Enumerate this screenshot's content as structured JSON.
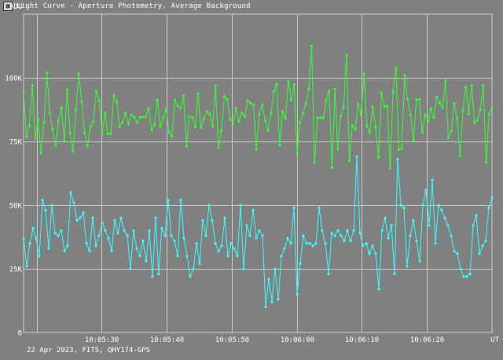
{
  "window": {
    "icon": "graph-icon",
    "title": "Light Curve - Aperture Photometry, Average Background"
  },
  "footer": {
    "caption": "22 Apr 2023, FITS, QHY174-GPS"
  },
  "chart_data": {
    "type": "line",
    "title": "",
    "ylabel": "ADU",
    "xlabel": "UT",
    "ylim": [
      0,
      125000
    ],
    "xlim": [
      0,
      72
    ],
    "grid": true,
    "y_ticks": [
      {
        "value": 0,
        "label": "0"
      },
      {
        "value": 25000,
        "label": "25K"
      },
      {
        "value": 50000,
        "label": "50K"
      },
      {
        "value": 75000,
        "label": "75K"
      },
      {
        "value": 100000,
        "label": "100K"
      }
    ],
    "x_ticks": [
      {
        "value": 2,
        "label": ""
      },
      {
        "value": 12,
        "label": "10:05:30"
      },
      {
        "value": 22,
        "label": "10:05:40"
      },
      {
        "value": 32,
        "label": "10:05:50"
      },
      {
        "value": 42,
        "label": "10:06:00"
      },
      {
        "value": 52,
        "label": "10:06:10"
      },
      {
        "value": 62,
        "label": "10:06:20"
      }
    ],
    "series": [
      {
        "color": "#33ff33",
        "values": [
          93900,
          76900,
          81300,
          97000,
          76200,
          83800,
          70500,
          82500,
          102000,
          86100,
          79800,
          73400,
          82900,
          88300,
          75200,
          95300,
          78300,
          71100,
          87300,
          101600,
          90600,
          78400,
          73200,
          80800,
          82700,
          94800,
          91100,
          78000,
          86300,
          78000,
          78100,
          93200,
          90700,
          80800,
          82500,
          86100,
          81800,
          85500,
          84600,
          82500,
          84500,
          84600,
          84700,
          88000,
          79500,
          81500,
          91300,
          80800,
          84500,
          87900,
          78600,
          77100,
          91300,
          88900,
          88200,
          93000,
          73100,
          84800,
          84500,
          80700,
          93700,
          80500,
          84100,
          86800,
          85800,
          81000,
          96900,
          72500,
          79200,
          92800,
          91500,
          83900,
          82000,
          88100,
          82800,
          86100,
          84900,
          91000,
          90100,
          89400,
          72000,
          85700,
          89600,
          83400,
          79200,
          86100,
          94600,
          97600,
          73600,
          86700,
          84100,
          98600,
          91300,
          97300,
          70200,
          82600,
          86000,
          89800,
          95800,
          112500,
          66700,
          84200,
          84400,
          84100,
          91200,
          94800,
          64700,
          95600,
          72000,
          85000,
          88400,
          109000,
          67400,
          81200,
          80000,
          89800,
          85300,
          101600,
          81100,
          78500,
          88600,
          80600,
          68700,
          94100,
          88800,
          88800,
          64500,
          94400,
          103900,
          71800,
          72300,
          100900,
          91600,
          85400,
          75500,
          91400,
          91600,
          78600,
          85500,
          83000,
          87900,
          84500,
          92500,
          90100,
          88300,
          99000,
          76400,
          79100,
          89900,
          84100,
          69400,
          87000,
          96400,
          85800,
          96900,
          82500,
          83400,
          87400,
          96900,
          67000,
          85700,
          88400
        ]
      },
      {
        "color": "#33ffff",
        "values": [
          36800,
          26000,
          35000,
          41000,
          37000,
          30000,
          52000,
          48000,
          33000,
          50000,
          39000,
          38000,
          40000,
          32000,
          34000,
          55000,
          51000,
          44000,
          45000,
          47000,
          35000,
          32000,
          45000,
          34000,
          38000,
          43000,
          40000,
          37000,
          32000,
          44000,
          39000,
          45000,
          40000,
          38000,
          25000,
          40000,
          33000,
          30000,
          36000,
          28000,
          40000,
          22000,
          45000,
          23000,
          41000,
          38000,
          52000,
          38000,
          36000,
          30000,
          52000,
          37000,
          30000,
          22000,
          25000,
          35000,
          27000,
          44000,
          38000,
          50000,
          44000,
          35000,
          32000,
          34000,
          45000,
          30000,
          35000,
          33000,
          30000,
          50000,
          25000,
          42000,
          38000,
          48000,
          37000,
          40000,
          38000,
          10000,
          21000,
          12000,
          25000,
          13000,
          30000,
          33000,
          37000,
          35000,
          49000,
          15000,
          27000,
          38000,
          35000,
          35000,
          34000,
          35000,
          49000,
          40000,
          35000,
          23000,
          39000,
          38000,
          40000,
          38000,
          36000,
          40000,
          36000,
          40000,
          69000,
          39000,
          34000,
          35000,
          31000,
          34000,
          31000,
          17000,
          40000,
          45000,
          37000,
          42000,
          23000,
          68000,
          50000,
          49000,
          26000,
          38000,
          44000,
          36000,
          28000,
          50000,
          56000,
          42000,
          60000,
          35000,
          50000,
          48000,
          45000,
          42000,
          38000,
          32000,
          31000,
          25000,
          22000,
          22000,
          23000,
          42000,
          46000,
          31000,
          34000,
          36000,
          49000,
          53000
        ]
      }
    ]
  }
}
